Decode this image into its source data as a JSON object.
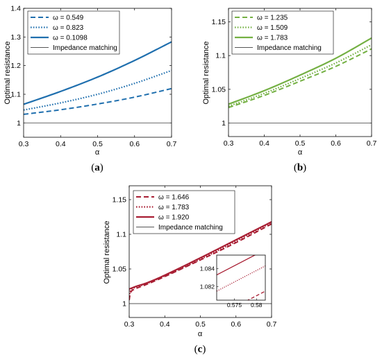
{
  "colors": {
    "a": "#1f6fae",
    "b": "#74b043",
    "c": "#a81e33",
    "reference": "#555555"
  },
  "panels": [
    {
      "caption_label": "a",
      "caption": "(a)"
    },
    {
      "caption_label": "b",
      "caption": "(b)"
    },
    {
      "caption_label": "c",
      "caption": "(c)"
    }
  ],
  "chart_data": [
    {
      "type": "line",
      "panel": "a",
      "xlabel": "α",
      "ylabel": "Optimal resistance",
      "xlim": [
        0.3,
        0.7
      ],
      "ylim": [
        0.95,
        1.4
      ],
      "xticks": [
        "0.3",
        "0.4",
        "0.5",
        "0.6",
        "0.7"
      ],
      "yticks": [
        "1",
        "1.1",
        "1.2",
        "1.3",
        "1.4"
      ],
      "grid": false,
      "legend_position": "top-left",
      "series": [
        {
          "name": "ω = 0.549",
          "style": "dashed",
          "x": [
            0.3,
            0.4,
            0.5,
            0.6,
            0.7
          ],
          "values": [
            1.03,
            1.046,
            1.066,
            1.09,
            1.12
          ]
        },
        {
          "name": "ω = 0.823",
          "style": "dotted",
          "x": [
            0.3,
            0.4,
            0.5,
            0.6,
            0.7
          ],
          "values": [
            1.045,
            1.07,
            1.1,
            1.138,
            1.183
          ]
        },
        {
          "name": "ω = 0.1098",
          "style": "solid",
          "x": [
            0.3,
            0.4,
            0.5,
            0.6,
            0.7
          ],
          "values": [
            1.065,
            1.11,
            1.16,
            1.218,
            1.283
          ]
        },
        {
          "name": "Impedance matching",
          "style": "thin",
          "x": [
            0.3,
            0.7
          ],
          "values": [
            1.0,
            1.0
          ]
        }
      ]
    },
    {
      "type": "line",
      "panel": "b",
      "xlabel": "α",
      "ylabel": "Optimal resistance",
      "xlim": [
        0.3,
        0.7
      ],
      "ylim": [
        0.98,
        1.17
      ],
      "xticks": [
        "0.3",
        "0.4",
        "0.5",
        "0.6",
        "0.7"
      ],
      "yticks": [
        "1",
        "1.05",
        "1.1",
        "1.15"
      ],
      "grid": false,
      "legend_position": "top-left",
      "series": [
        {
          "name": "ω = 1.235",
          "style": "dashed",
          "x": [
            0.3,
            0.4,
            0.5,
            0.6,
            0.7
          ],
          "values": [
            1.023,
            1.041,
            1.062,
            1.084,
            1.11
          ]
        },
        {
          "name": "ω = 1.509",
          "style": "dotted",
          "x": [
            0.3,
            0.4,
            0.5,
            0.6,
            0.7
          ],
          "values": [
            1.025,
            1.044,
            1.066,
            1.089,
            1.116
          ]
        },
        {
          "name": "ω = 1.783",
          "style": "solid",
          "x": [
            0.3,
            0.4,
            0.5,
            0.6,
            0.7
          ],
          "values": [
            1.028,
            1.048,
            1.071,
            1.096,
            1.126
          ]
        },
        {
          "name": "Impedance matching",
          "style": "thin",
          "x": [
            0.3,
            0.7
          ],
          "values": [
            1.0,
            1.0
          ]
        }
      ]
    },
    {
      "type": "line",
      "panel": "c",
      "xlabel": "α",
      "ylabel": "Optimal resistance",
      "xlim": [
        0.3,
        0.7
      ],
      "ylim": [
        0.98,
        1.17
      ],
      "xticks": [
        "0.3",
        "0.4",
        "0.5",
        "0.6",
        "0.7"
      ],
      "yticks": [
        "1",
        "1.05",
        "1.1",
        "1.15"
      ],
      "grid": false,
      "legend_position": "top-left",
      "series": [
        {
          "name": "ω = 1.646",
          "style": "dashed",
          "x": [
            0.3,
            0.305,
            0.32,
            0.35,
            0.4,
            0.5,
            0.6,
            0.7
          ],
          "values": [
            1.005,
            1.017,
            1.022,
            1.028,
            1.039,
            1.063,
            1.088,
            1.115
          ]
        },
        {
          "name": "ω = 1.783",
          "style": "dotted",
          "x": [
            0.3,
            0.305,
            0.32,
            0.35,
            0.4,
            0.5,
            0.6,
            0.7
          ],
          "values": [
            1.01,
            1.02,
            1.024,
            1.029,
            1.04,
            1.064,
            1.09,
            1.117
          ]
        },
        {
          "name": "ω = 1.920",
          "style": "solid",
          "x": [
            0.3,
            0.305,
            0.32,
            0.35,
            0.4,
            0.5,
            0.6,
            0.7
          ],
          "values": [
            1.021,
            1.022,
            1.025,
            1.03,
            1.041,
            1.066,
            1.092,
            1.118
          ]
        },
        {
          "name": "Impedance matching",
          "style": "thin",
          "x": [
            0.3,
            0.7
          ],
          "values": [
            1.0,
            1.0
          ]
        }
      ],
      "inset": {
        "xlim": [
          0.571,
          0.582
        ],
        "ylim": [
          1.0805,
          1.0855
        ],
        "xticks": [
          "0.575",
          "0.58"
        ],
        "yticks": [
          "1.082",
          "1.084"
        ],
        "series": [
          {
            "style": "dashed",
            "x": [
              0.571,
              0.582
            ],
            "values": [
              1.0787,
              1.0815
            ]
          },
          {
            "style": "dotted",
            "x": [
              0.571,
              0.582
            ],
            "values": [
              1.0815,
              1.0843
            ]
          },
          {
            "style": "solid",
            "x": [
              0.571,
              0.582
            ],
            "values": [
              1.0833,
              1.0861
            ]
          }
        ]
      }
    }
  ]
}
